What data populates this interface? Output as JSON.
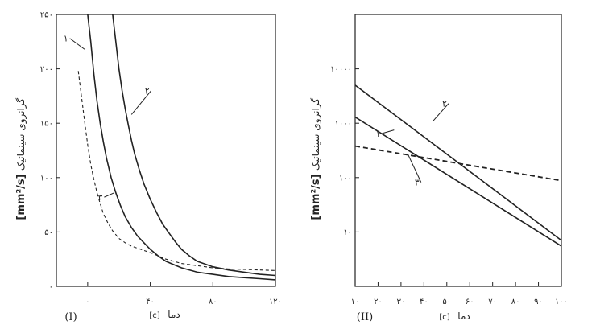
{
  "chart_data": [
    {
      "type": "line",
      "panel_label": "(I)",
      "ylabel": "گرانروی سینماتیک",
      "yunit": "[mm²/s]",
      "xlabel": "دما",
      "xunit": "[c]",
      "ylim": [
        0,
        250
      ],
      "xlim": [
        -20,
        120
      ],
      "x_ticks": [
        0,
        40,
        80,
        120
      ],
      "x_tick_labels": [
        "۰",
        "۴۰",
        "۸۰",
        "۱۲۰"
      ],
      "y_ticks": [
        0,
        50,
        100,
        150,
        200,
        250
      ],
      "y_tick_labels": [
        "۰",
        "۵۰",
        "۱۰۰",
        "۱۵۰",
        "۲۰۰",
        "۲۵۰"
      ],
      "grid": false,
      "series": [
        {
          "name": "۱",
          "style": "solid",
          "points": [
            [
              0,
              250
            ],
            [
              2,
              225
            ],
            [
              4,
              195
            ],
            [
              6,
              170
            ],
            [
              8,
              150
            ],
            [
              10,
              133
            ],
            [
              12,
              118
            ],
            [
              15,
              100
            ],
            [
              18,
              86
            ],
            [
              21,
              74
            ],
            [
              24,
              64
            ],
            [
              28,
              54
            ],
            [
              32,
              46
            ],
            [
              36,
              40
            ],
            [
              40,
              34
            ],
            [
              45,
              28
            ],
            [
              50,
              23
            ],
            [
              55,
              20
            ],
            [
              60,
              17
            ],
            [
              70,
              13
            ],
            [
              80,
              11
            ],
            [
              90,
              9
            ],
            [
              100,
              8
            ],
            [
              110,
              7
            ],
            [
              120,
              6
            ]
          ]
        },
        {
          "name": "۲",
          "style": "solid",
          "points": [
            [
              16,
              250
            ],
            [
              18,
              225
            ],
            [
              20,
              200
            ],
            [
              22,
              180
            ],
            [
              24,
              163
            ],
            [
              26,
              148
            ],
            [
              28,
              134
            ],
            [
              30,
              122
            ],
            [
              33,
              107
            ],
            [
              36,
              94
            ],
            [
              40,
              80
            ],
            [
              44,
              68
            ],
            [
              48,
              57
            ],
            [
              52,
              49
            ],
            [
              56,
              41
            ],
            [
              60,
              34
            ],
            [
              65,
              28
            ],
            [
              70,
              23
            ],
            [
              80,
              18
            ],
            [
              90,
              15
            ],
            [
              100,
              13
            ],
            [
              110,
              11
            ],
            [
              120,
              10
            ]
          ]
        },
        {
          "name": "۳",
          "style": "dashed",
          "points": [
            [
              -6,
              198
            ],
            [
              -4,
              175
            ],
            [
              -2,
              152
            ],
            [
              0,
              130
            ],
            [
              2,
              112
            ],
            [
              4,
              98
            ],
            [
              6,
              86
            ],
            [
              8,
              76
            ],
            [
              10,
              67
            ],
            [
              13,
              58
            ],
            [
              16,
              51
            ],
            [
              20,
              44
            ],
            [
              24,
              40
            ],
            [
              28,
              37
            ],
            [
              32,
              35
            ],
            [
              36,
              33
            ],
            [
              40,
              31
            ],
            [
              45,
              28
            ],
            [
              50,
              25
            ],
            [
              55,
              23
            ],
            [
              60,
              21
            ],
            [
              70,
              19
            ],
            [
              80,
              17
            ],
            [
              90,
              16
            ],
            [
              100,
              15.5
            ],
            [
              110,
              15
            ],
            [
              120,
              14.5
            ]
          ]
        }
      ],
      "curve_labels": [
        {
          "text": "۱",
          "at": [
            -14,
            228
          ],
          "to": [
            -2,
            218
          ]
        },
        {
          "text": "۲",
          "at": [
            38,
            180
          ],
          "to": [
            28,
            158
          ]
        },
        {
          "text": "۳",
          "at": [
            8,
            82
          ],
          "to": [
            17,
            86
          ]
        }
      ]
    },
    {
      "type": "line",
      "panel_label": "(II)",
      "ylabel": "گرانروی سینماتیک",
      "yunit": "[mm²/s]",
      "xlabel": "دما",
      "xunit": "[c]",
      "yscale": "log",
      "ylim": [
        1,
        100000
      ],
      "xlim": [
        10,
        100
      ],
      "x_ticks": [
        10,
        20,
        30,
        40,
        50,
        60,
        70,
        80,
        90,
        100
      ],
      "x_tick_labels": [
        "۱۰",
        "۲۰",
        "۳۰",
        "۴۰",
        "۵۰",
        "۶۰",
        "۷۰",
        "۸۰",
        "۹۰",
        "۱۰۰"
      ],
      "y_ticks": [
        10,
        100,
        1000,
        10000
      ],
      "y_tick_labels": [
        "۱۰",
        "۱۰۰",
        "۱۰۰۰",
        "۱۰۰۰۰"
      ],
      "grid": false,
      "series": [
        {
          "name": "۱",
          "style": "solid",
          "points": [
            [
              10,
              1300
            ],
            [
              100,
              5.5
            ]
          ]
        },
        {
          "name": "۲",
          "style": "solid",
          "points": [
            [
              10,
              5000
            ],
            [
              100,
              7
            ]
          ]
        },
        {
          "name": "۳",
          "style": "dashed",
          "points": [
            [
              10,
              380
            ],
            [
              100,
              88
            ]
          ]
        }
      ],
      "curve_labels": [
        {
          "text": "۲",
          "at": [
            49,
            2300
          ],
          "to": [
            44,
            1100
          ]
        },
        {
          "text": "۱",
          "at": [
            20,
            650
          ],
          "to": [
            27,
            750
          ]
        },
        {
          "text": "۳",
          "at": [
            37,
            82
          ],
          "to": [
            33,
            270
          ]
        }
      ]
    }
  ]
}
